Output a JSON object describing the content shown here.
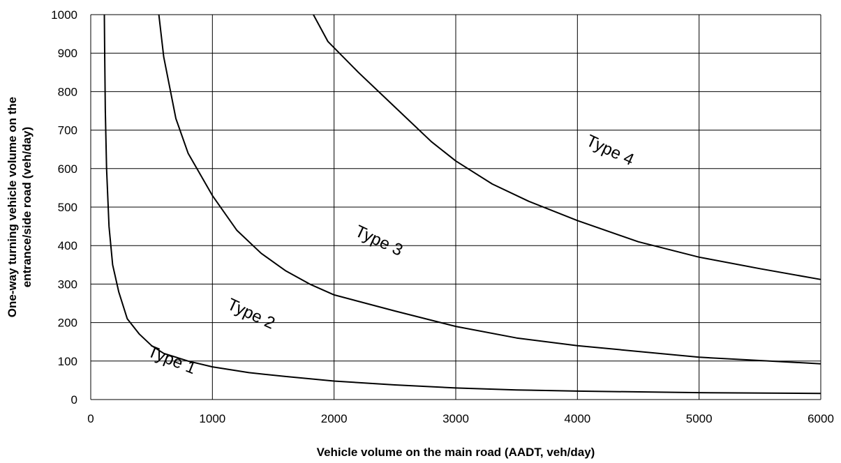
{
  "chart_data": {
    "type": "line",
    "xlabel": "Vehicle volume on the main road (AADT, veh/day)",
    "ylabel_lines": [
      "One-way turning vehicle volume on the",
      "entrance/side road (veh/day)"
    ],
    "xlim": [
      0,
      6000
    ],
    "ylim": [
      0,
      1000
    ],
    "x_ticks": [
      0,
      1000,
      2000,
      3000,
      4000,
      5000,
      6000
    ],
    "x_tick_labels": [
      "0",
      "1000",
      "2000",
      "3000",
      "4000",
      "5000",
      "6000"
    ],
    "y_ticks": [
      0,
      100,
      200,
      300,
      400,
      500,
      600,
      700,
      800,
      900,
      1000
    ],
    "y_tick_labels": [
      "0",
      "100",
      "200",
      "300",
      "400",
      "500",
      "600",
      "700",
      "800",
      "900",
      "1000"
    ],
    "grid": true,
    "line_color": "#000000",
    "series": [
      {
        "name": "Type 1",
        "points": [
          [
            112,
            1000
          ],
          [
            115,
            900
          ],
          [
            120,
            750
          ],
          [
            130,
            600
          ],
          [
            150,
            450
          ],
          [
            180,
            350
          ],
          [
            230,
            280
          ],
          [
            300,
            210
          ],
          [
            400,
            170
          ],
          [
            500,
            140
          ],
          [
            600,
            120
          ],
          [
            800,
            100
          ],
          [
            1000,
            85
          ],
          [
            1300,
            70
          ],
          [
            1600,
            60
          ],
          [
            2000,
            48
          ],
          [
            2500,
            38
          ],
          [
            3000,
            30
          ],
          [
            3500,
            25
          ],
          [
            4000,
            22
          ],
          [
            5000,
            18
          ],
          [
            6000,
            16
          ]
        ]
      },
      {
        "name": "Type 2",
        "points": [
          [
            560,
            1000
          ],
          [
            600,
            890
          ],
          [
            700,
            730
          ],
          [
            800,
            640
          ],
          [
            1000,
            530
          ],
          [
            1200,
            440
          ],
          [
            1400,
            380
          ],
          [
            1600,
            335
          ],
          [
            1800,
            300
          ],
          [
            2000,
            272
          ],
          [
            2500,
            230
          ],
          [
            3000,
            190
          ],
          [
            3500,
            160
          ],
          [
            4000,
            140
          ],
          [
            5000,
            110
          ],
          [
            6000,
            93
          ]
        ]
      },
      {
        "name": "Type 3",
        "points": [
          [
            1830,
            1000
          ],
          [
            1950,
            930
          ],
          [
            2200,
            850
          ],
          [
            2500,
            760
          ],
          [
            2800,
            670
          ],
          [
            3000,
            620
          ],
          [
            3300,
            560
          ],
          [
            3600,
            515
          ],
          [
            4000,
            465
          ],
          [
            4500,
            410
          ],
          [
            5000,
            370
          ],
          [
            5500,
            340
          ],
          [
            6000,
            312
          ]
        ]
      },
      {
        "name": "Type 4",
        "points": []
      }
    ],
    "annotations": [
      {
        "text": "Type 1",
        "x": 650,
        "y": 90,
        "angle": 22
      },
      {
        "text": "Type 2",
        "x": 1300,
        "y": 210,
        "angle": 25
      },
      {
        "text": "Type 3",
        "x": 2350,
        "y": 400,
        "angle": 25
      },
      {
        "text": "Type 4",
        "x": 4250,
        "y": 635,
        "angle": 25
      }
    ]
  }
}
